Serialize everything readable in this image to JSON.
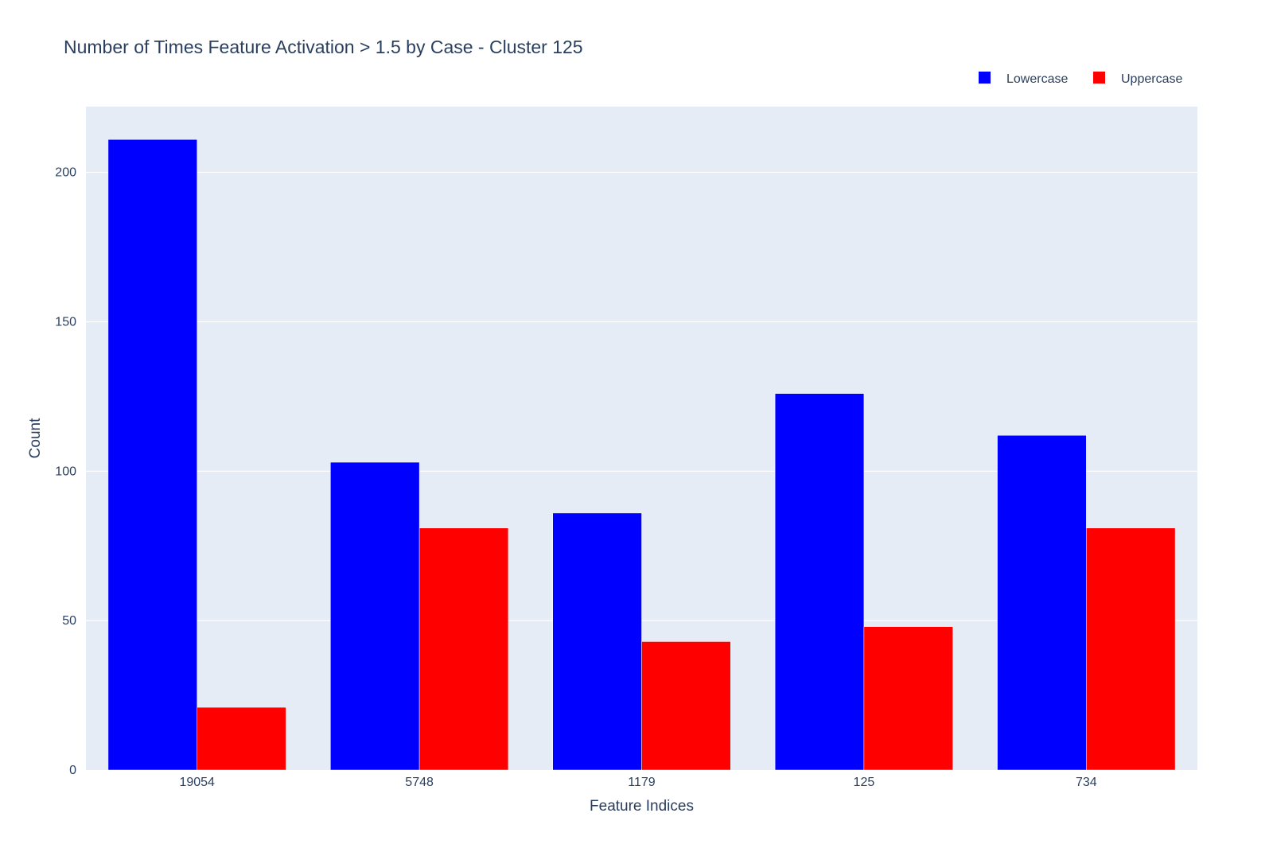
{
  "chart_data": {
    "type": "bar",
    "title": "Number of Times Feature Activation > 1.5 by Case - Cluster 125",
    "xlabel": "Feature Indices",
    "ylabel": "Count",
    "categories": [
      "19054",
      "5748",
      "1179",
      "125",
      "734"
    ],
    "series": [
      {
        "name": "Lowercase",
        "color": "#0000ff",
        "values": [
          211,
          103,
          86,
          126,
          112
        ]
      },
      {
        "name": "Uppercase",
        "color": "#ff0000",
        "values": [
          21,
          81,
          43,
          48,
          81
        ]
      }
    ],
    "ylim": [
      0,
      222
    ],
    "yticks": [
      0,
      50,
      100,
      150,
      200
    ],
    "grid": true,
    "legend_position": "top-right",
    "plot_background": "#e5ecf6",
    "text_color": "#2a3f5f",
    "barmode": "group"
  }
}
